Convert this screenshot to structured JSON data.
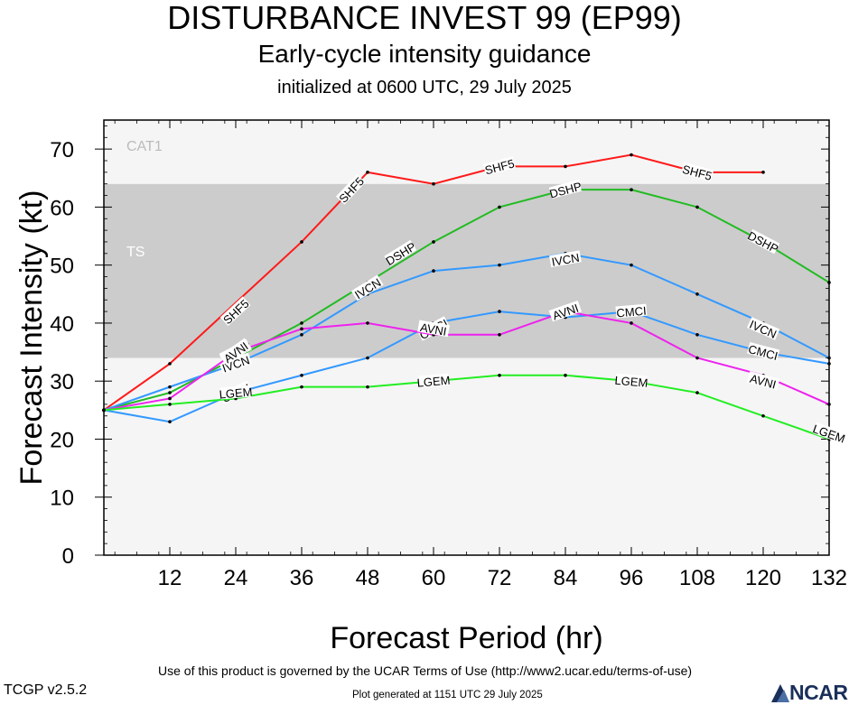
{
  "header": {
    "title": "DISTURBANCE INVEST 99 (EP99)",
    "subtitle": "Early-cycle intensity guidance",
    "init": "initialized at 0600 UTC, 29 July 2025"
  },
  "footer": {
    "terms": "Use of this product is governed by the UCAR Terms of Use (http://www2.ucar.edu/terms-of-use)",
    "version": "TCGP v2.5.2",
    "generated": "Plot generated at 1151 UTC   29 July 2025",
    "logo": "NCAR"
  },
  "chart_data": {
    "type": "line",
    "xlabel": "Forecast Period (hr)",
    "ylabel": "Forecast Intensity (kt)",
    "xlim": [
      0,
      132
    ],
    "ylim": [
      0,
      75
    ],
    "xticks": [
      12,
      24,
      36,
      48,
      60,
      72,
      84,
      96,
      108,
      120,
      132
    ],
    "yticks": [
      0,
      10,
      20,
      30,
      40,
      50,
      60,
      70
    ],
    "grid": false,
    "bands": [
      {
        "name": "TS",
        "from": 34,
        "to": 64,
        "color": "#cccccc"
      },
      {
        "name": "CAT1",
        "from": 64,
        "to": 75,
        "color": "#f5f5f5"
      }
    ],
    "below_band_color": "#f5f5f5",
    "series": [
      {
        "name": "SHF5",
        "color": "#ff1a1a",
        "x": [
          0,
          12,
          36,
          48,
          60,
          72,
          84,
          96,
          108,
          120
        ],
        "y": [
          25,
          33,
          54,
          66,
          64,
          67,
          67,
          69,
          66,
          66
        ],
        "label_at": [
          [
            24,
            42
          ],
          [
            45,
            63
          ],
          [
            72,
            67
          ],
          [
            108,
            66
          ]
        ]
      },
      {
        "name": "DSHP",
        "color": "#22bb22",
        "x": [
          0,
          12,
          24,
          36,
          48,
          60,
          72,
          84,
          96,
          108,
          120,
          132
        ],
        "y": [
          25,
          28,
          34,
          40,
          47,
          54,
          60,
          63,
          63,
          60,
          54,
          47
        ],
        "label_at": [
          [
            24,
            35
          ],
          [
            54,
            52
          ],
          [
            84,
            63
          ],
          [
            120,
            54
          ]
        ]
      },
      {
        "name": "IVCN",
        "color": "#3399ff",
        "x": [
          0,
          12,
          24,
          36,
          48,
          60,
          72,
          84,
          96,
          108,
          120,
          132
        ],
        "y": [
          25,
          29,
          33,
          38,
          45,
          49,
          50,
          52,
          50,
          45,
          40,
          34
        ],
        "label_at": [
          [
            24,
            33
          ],
          [
            48,
            46
          ],
          [
            84,
            51
          ],
          [
            120,
            39
          ]
        ]
      },
      {
        "name": "CMCI",
        "color": "#3399ff",
        "x": [
          0,
          12,
          24,
          36,
          48,
          60,
          72,
          84,
          96,
          108,
          120,
          132
        ],
        "y": [
          25,
          23,
          28,
          31,
          34,
          40,
          42,
          41,
          42,
          38,
          35,
          33
        ],
        "label_at": [
          [
            24,
            28
          ],
          [
            60,
            39
          ],
          [
            96,
            42
          ],
          [
            120,
            35
          ]
        ]
      },
      {
        "name": "AVNI",
        "color": "#ee22ee",
        "x": [
          0,
          12,
          24,
          36,
          48,
          60,
          72,
          84,
          96,
          108,
          120,
          132
        ],
        "y": [
          25,
          27,
          35,
          39,
          40,
          38,
          38,
          42,
          40,
          34,
          31,
          26
        ],
        "label_at": [
          [
            24,
            35
          ],
          [
            60,
            39
          ],
          [
            84,
            42
          ],
          [
            120,
            30
          ]
        ]
      },
      {
        "name": "LGEM",
        "color": "#22ee22",
        "x": [
          0,
          12,
          24,
          36,
          48,
          60,
          72,
          84,
          96,
          108,
          120,
          132
        ],
        "y": [
          25,
          26,
          27,
          29,
          29,
          30,
          31,
          31,
          30,
          28,
          24,
          20
        ],
        "label_at": [
          [
            24,
            28
          ],
          [
            60,
            30
          ],
          [
            96,
            30
          ],
          [
            132,
            21
          ]
        ]
      }
    ]
  }
}
